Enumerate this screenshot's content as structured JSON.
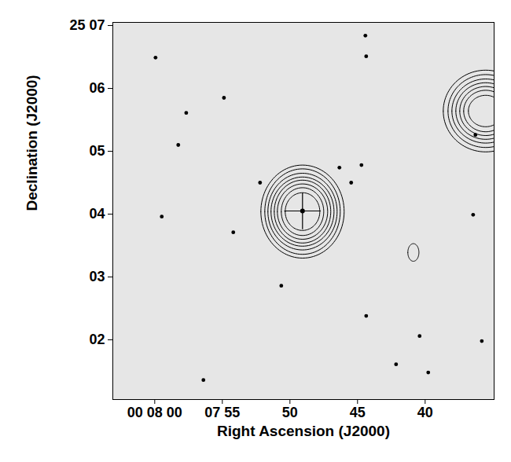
{
  "chart_data": {
    "type": "contour",
    "xlabel": "Right Ascension (J2000)",
    "ylabel": "Declination (J2000)",
    "xlim": [
      63.1,
      34.9
    ],
    "ylim": [
      1.05,
      7.05
    ],
    "xticks": [
      {
        "value": 60,
        "label": "00 08 00"
      },
      {
        "value": 55,
        "label": "07 55"
      },
      {
        "value": 50,
        "label": "50"
      },
      {
        "value": 45,
        "label": "45"
      },
      {
        "value": 40,
        "label": "40"
      }
    ],
    "yticks": [
      {
        "value": 7,
        "label": "25 07"
      },
      {
        "value": 6,
        "label": "06"
      },
      {
        "value": 5,
        "label": "05"
      },
      {
        "value": 4,
        "label": "04"
      },
      {
        "value": 3,
        "label": "03"
      },
      {
        "value": 2,
        "label": "02"
      }
    ],
    "stars": {
      "color": "#000000",
      "ra": [
        44.42,
        44.36,
        59.94,
        54.88,
        57.67,
        58.26,
        52.21,
        46.34,
        44.71,
        45.47,
        59.48,
        54.19,
        36.45,
        50.64,
        44.36,
        40.41,
        35.81,
        42.15,
        39.77,
        56.4,
        36.28
      ],
      "dec": [
        6.84,
        6.51,
        6.49,
        5.85,
        5.61,
        5.1,
        4.5,
        4.74,
        4.78,
        4.5,
        3.96,
        3.71,
        3.99,
        2.86,
        2.38,
        2.06,
        1.98,
        1.61,
        1.48,
        1.36,
        5.26
      ]
    },
    "source": {
      "ra": 49.07,
      "dec": 4.05,
      "marker": "plus",
      "color": "#000000"
    },
    "contours": [
      {
        "ra": 49.07,
        "dec": 4.04,
        "rx": [
          3.08,
          2.79,
          2.56,
          2.33,
          2.09,
          1.86,
          1.57,
          1.28
        ],
        "ry": [
          0.74,
          0.68,
          0.61,
          0.55,
          0.5,
          0.44,
          0.38,
          0.3
        ]
      },
      {
        "ra": 35.52,
        "dec": 5.64,
        "rx": [
          3.14,
          2.79,
          2.5,
          2.21,
          1.92,
          1.63,
          1.28
        ],
        "ry": [
          0.65,
          0.58,
          0.51,
          0.45,
          0.39,
          0.33,
          0.25
        ]
      },
      {
        "ra": 40.87,
        "dec": 3.39,
        "rx": [
          0.41
        ],
        "ry": [
          0.14
        ]
      }
    ]
  }
}
